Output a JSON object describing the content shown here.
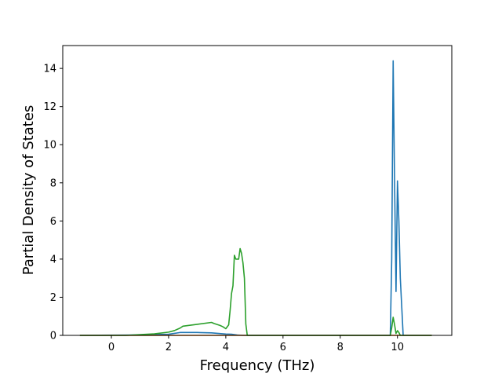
{
  "chart_data": {
    "type": "line",
    "title": "",
    "xlabel": "Frequency (THz)",
    "ylabel": "Partial Density of States",
    "xlim": [
      -1.7,
      11.9
    ],
    "ylim": [
      0,
      15.2
    ],
    "xticks": [
      0,
      2,
      4,
      6,
      8,
      10
    ],
    "yticks": [
      0,
      2,
      4,
      6,
      8,
      10,
      12,
      14
    ],
    "grid": false,
    "legend": "none",
    "series": [
      {
        "color": "#1f77b4",
        "x": [
          -1.1,
          1.0,
          2.0,
          2.4,
          3.0,
          3.5,
          4.0,
          4.2,
          4.4,
          4.6,
          9.75,
          9.8,
          9.85,
          9.9,
          9.95,
          10.0,
          10.05,
          10.1,
          10.2,
          11.2
        ],
        "y": [
          0.0,
          0.02,
          0.06,
          0.15,
          0.15,
          0.13,
          0.07,
          0.06,
          0.02,
          0.0,
          0.0,
          4.0,
          14.4,
          8.0,
          2.3,
          8.1,
          6.0,
          3.0,
          0.0,
          0.0
        ]
      },
      {
        "color": "#ff7f0e",
        "x": [
          -1.1,
          11.2
        ],
        "y": [
          0.0,
          0.0
        ]
      },
      {
        "color": "#2ca02c",
        "x": [
          -1.1,
          0.5,
          1.0,
          1.5,
          2.0,
          2.2,
          2.4,
          2.5,
          3.0,
          3.5,
          3.6,
          3.8,
          3.9,
          4.0,
          4.1,
          4.15,
          4.2,
          4.25,
          4.3,
          4.35,
          4.45,
          4.5,
          4.55,
          4.6,
          4.65,
          4.7,
          4.75,
          9.75,
          9.8,
          9.85,
          9.9,
          9.95,
          10.0,
          10.05,
          10.1,
          11.2
        ],
        "y": [
          0.0,
          0.0,
          0.04,
          0.08,
          0.17,
          0.25,
          0.38,
          0.48,
          0.58,
          0.68,
          0.62,
          0.52,
          0.45,
          0.35,
          0.55,
          1.3,
          2.2,
          2.6,
          4.2,
          4.0,
          4.0,
          4.55,
          4.3,
          3.8,
          3.0,
          0.6,
          0.0,
          0.0,
          0.4,
          0.95,
          0.55,
          0.1,
          0.25,
          0.15,
          0.0,
          0.0
        ]
      }
    ]
  }
}
